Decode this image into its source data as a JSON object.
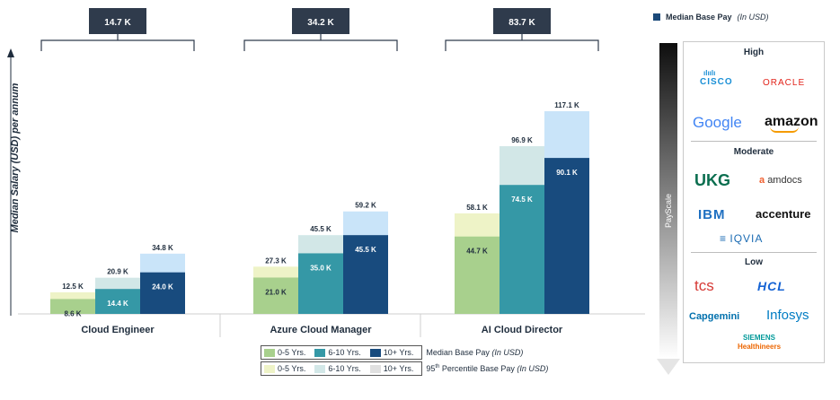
{
  "chart_data": {
    "type": "bar",
    "ylabel": "Median Salary (USD) per annum",
    "categories": [
      "Cloud Engineer",
      "Azure Cloud Manager",
      "AI Cloud Director"
    ],
    "range_labels": [
      "14.7 K",
      "34.2 K",
      "83.7 K"
    ],
    "series": [
      {
        "name": "0-5 Yrs.",
        "median": [
          8.6,
          21.0,
          44.7
        ],
        "p95": [
          12.5,
          27.3,
          58.1
        ],
        "median_labels": [
          "8.6 K",
          "21.0 K",
          "44.7 K"
        ],
        "p95_labels": [
          "12.5 K",
          "27.3 K",
          "58.1 K"
        ],
        "color": "#a8d08d",
        "light": "#eef3c7"
      },
      {
        "name": "6-10 Yrs.",
        "median": [
          14.4,
          35.0,
          74.5
        ],
        "p95": [
          20.9,
          45.5,
          96.9
        ],
        "median_labels": [
          "14.4 K",
          "35.0 K",
          "74.5 K"
        ],
        "p95_labels": [
          "20.9 K",
          "45.5 K",
          "96.9 K"
        ],
        "color": "#3598a6",
        "light": "#d2e7e7"
      },
      {
        "name": "10+ Yrs.",
        "median": [
          24.0,
          45.5,
          90.1
        ],
        "p95": [
          34.8,
          59.2,
          117.1
        ],
        "median_labels": [
          "24.0 K",
          "45.5 K",
          "90.1 K"
        ],
        "p95_labels": [
          "34.8 K",
          "59.2 K",
          "117.1 K"
        ],
        "color": "#184b7e",
        "light": "#c9e4f9"
      }
    ],
    "ylim": [
      0,
      130
    ],
    "grid": false
  },
  "legend": {
    "top_label": "Median Base Pay",
    "top_unit": "(In USD)",
    "median_caption": "Median Base Pay",
    "median_unit": "(In USD)",
    "p95_caption_num": "95",
    "p95_caption_sup": "th",
    "p95_caption_rest": " Percentile Base Pay",
    "p95_unit": "(In USD)",
    "items": [
      "0-5 Yrs.",
      "6-10 Yrs.",
      "10+ Yrs."
    ]
  },
  "colors": {
    "green": "#a8d08d",
    "teal": "#3598a6",
    "navy": "#184b7e",
    "light_green": "#eef3c7",
    "light_teal": "#d2e7e7",
    "light_blue": "#c9e4f9",
    "range_box": "#2f3b4c"
  },
  "payscale": {
    "label": "PayScale",
    "tiers": [
      {
        "name": "High",
        "companies": [
          "CISCO",
          "ORACLE",
          "Google",
          "amazon"
        ]
      },
      {
        "name": "Moderate",
        "companies": [
          "UKG",
          "amdocs",
          "IBM",
          "accenture",
          "IQVIA"
        ]
      },
      {
        "name": "Low",
        "companies": [
          "tcs",
          "HCL",
          "Capgemini",
          "Infosys",
          "SIEMENS",
          "Healthineers"
        ]
      }
    ]
  }
}
